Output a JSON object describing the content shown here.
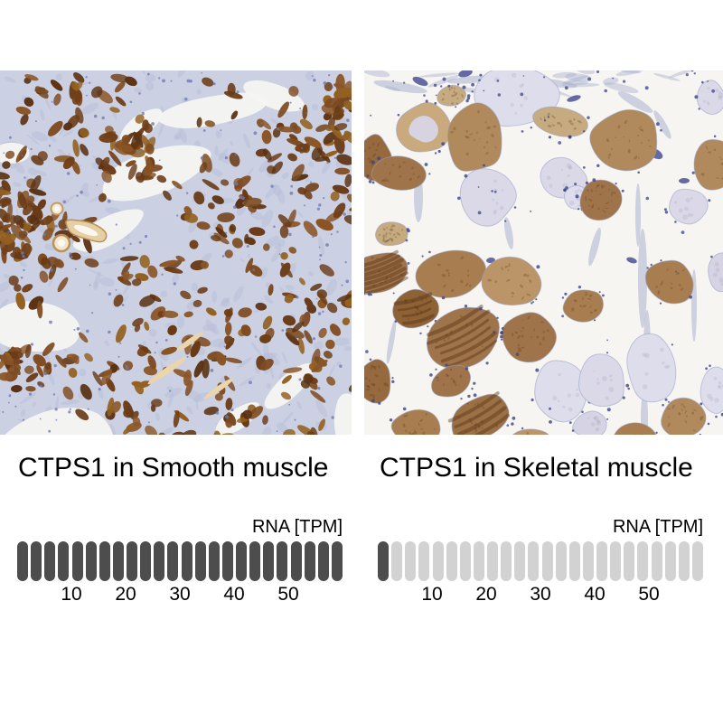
{
  "figure": {
    "background": "#ffffff",
    "panels": [
      {
        "micrograph": "ihc-micrograph-smooth-muscle"
      },
      {
        "micrograph": "ihc-micrograph-skeletal-muscle"
      }
    ]
  },
  "chart_data": [
    {
      "type": "bar",
      "title": "CTPS1 in Smooth muscle",
      "axis_label": "RNA [TPM]",
      "tick_labels": [
        10,
        20,
        30,
        40,
        50
      ],
      "xlim_tpm": [
        0,
        60
      ],
      "tpm_per_segment": 2.5,
      "segments_total": 24,
      "segments_filled": 24,
      "filled_color": "#4d4d4d",
      "empty_color": "#d2d2d2",
      "grid": false,
      "legend_position": "none"
    },
    {
      "type": "bar",
      "title": "CTPS1 in Skeletal muscle",
      "axis_label": "RNA [TPM]",
      "tick_labels": [
        10,
        20,
        30,
        40,
        50
      ],
      "xlim_tpm": [
        0,
        60
      ],
      "tpm_per_segment": 2.5,
      "segments_total": 24,
      "segments_filled": 1,
      "filled_color": "#4d4d4d",
      "empty_color": "#d2d2d2",
      "grid": false,
      "legend_position": "none"
    }
  ]
}
